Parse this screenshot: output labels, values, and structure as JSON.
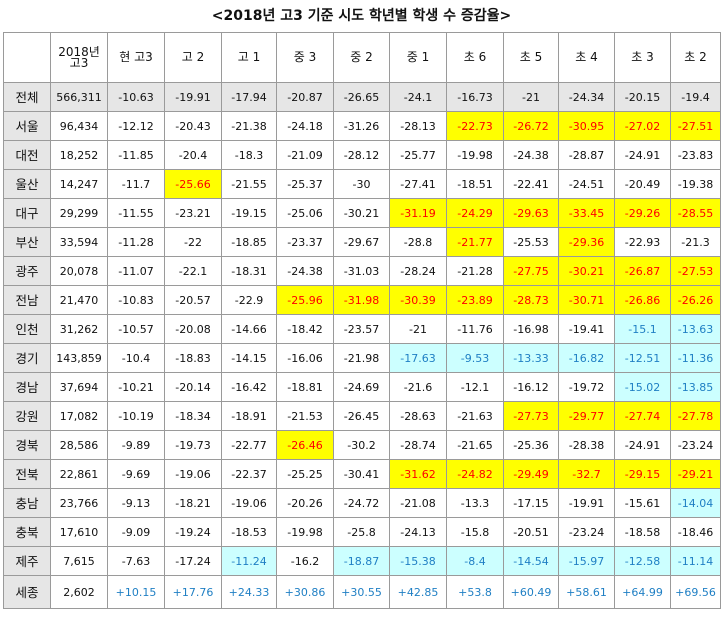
{
  "title": "<2018년 고3 기준 시도 학년별 학생 수 증감율>",
  "columns": [
    "2018년 고3",
    "현 고3",
    "고 2",
    "고 1",
    "중 3",
    "중 2",
    "중 1",
    "초 6",
    "초 5",
    "초 4",
    "초 3",
    "초 2"
  ],
  "colors": {
    "yellow_bg": "#ffff00",
    "yellow_text": "#ff0000",
    "cyan_bg": "#ccffff",
    "cyan_text": "#1f7fc4",
    "header_bg": "#e6e6e6"
  },
  "rows": [
    {
      "region": "전체",
      "cells": [
        {
          "v": "566,311"
        },
        {
          "v": "-10.63"
        },
        {
          "v": "-19.91"
        },
        {
          "v": "-17.94"
        },
        {
          "v": "-20.87"
        },
        {
          "v": "-26.65"
        },
        {
          "v": "-24.1"
        },
        {
          "v": "-16.73"
        },
        {
          "v": "-21"
        },
        {
          "v": "-24.34"
        },
        {
          "v": "-20.15"
        },
        {
          "v": "-19.4"
        }
      ]
    },
    {
      "region": "서울",
      "cells": [
        {
          "v": "96,434"
        },
        {
          "v": "-12.12"
        },
        {
          "v": "-20.43"
        },
        {
          "v": "-21.38"
        },
        {
          "v": "-24.18"
        },
        {
          "v": "-31.26"
        },
        {
          "v": "-28.13"
        },
        {
          "v": "-22.73",
          "h": "yellow"
        },
        {
          "v": "-26.72",
          "h": "yellow"
        },
        {
          "v": "-30.95",
          "h": "yellow"
        },
        {
          "v": "-27.02",
          "h": "yellow"
        },
        {
          "v": "-27.51",
          "h": "yellow"
        }
      ]
    },
    {
      "region": "대전",
      "cells": [
        {
          "v": "18,252"
        },
        {
          "v": "-11.85"
        },
        {
          "v": "-20.4"
        },
        {
          "v": "-18.3"
        },
        {
          "v": "-21.09"
        },
        {
          "v": "-28.12"
        },
        {
          "v": "-25.77"
        },
        {
          "v": "-19.98"
        },
        {
          "v": "-24.38"
        },
        {
          "v": "-28.87"
        },
        {
          "v": "-24.91"
        },
        {
          "v": "-23.83"
        }
      ]
    },
    {
      "region": "울산",
      "cells": [
        {
          "v": "14,247"
        },
        {
          "v": "-11.7"
        },
        {
          "v": "-25.66",
          "h": "yellow"
        },
        {
          "v": "-21.55"
        },
        {
          "v": "-25.37"
        },
        {
          "v": "-30"
        },
        {
          "v": "-27.41"
        },
        {
          "v": "-18.51"
        },
        {
          "v": "-22.41"
        },
        {
          "v": "-24.51"
        },
        {
          "v": "-20.49"
        },
        {
          "v": "-19.38"
        }
      ]
    },
    {
      "region": "대구",
      "cells": [
        {
          "v": "29,299"
        },
        {
          "v": "-11.55"
        },
        {
          "v": "-23.21"
        },
        {
          "v": "-19.15"
        },
        {
          "v": "-25.06"
        },
        {
          "v": "-30.21"
        },
        {
          "v": "-31.19",
          "h": "yellow"
        },
        {
          "v": "-24.29",
          "h": "yellow"
        },
        {
          "v": "-29.63",
          "h": "yellow"
        },
        {
          "v": "-33.45",
          "h": "yellow"
        },
        {
          "v": "-29.26",
          "h": "yellow"
        },
        {
          "v": "-28.55",
          "h": "yellow"
        }
      ]
    },
    {
      "region": "부산",
      "cells": [
        {
          "v": "33,594"
        },
        {
          "v": "-11.28"
        },
        {
          "v": "-22"
        },
        {
          "v": "-18.85"
        },
        {
          "v": "-23.37"
        },
        {
          "v": "-29.67"
        },
        {
          "v": "-28.8"
        },
        {
          "v": "-21.77",
          "h": "yellow"
        },
        {
          "v": "-25.53"
        },
        {
          "v": "-29.36",
          "h": "yellow"
        },
        {
          "v": "-22.93"
        },
        {
          "v": "-21.3"
        }
      ]
    },
    {
      "region": "광주",
      "cells": [
        {
          "v": "20,078"
        },
        {
          "v": "-11.07"
        },
        {
          "v": "-22.1"
        },
        {
          "v": "-18.31"
        },
        {
          "v": "-24.38"
        },
        {
          "v": "-31.03"
        },
        {
          "v": "-28.24"
        },
        {
          "v": "-21.28"
        },
        {
          "v": "-27.75",
          "h": "yellow"
        },
        {
          "v": "-30.21",
          "h": "yellow"
        },
        {
          "v": "-26.87",
          "h": "yellow"
        },
        {
          "v": "-27.53",
          "h": "yellow"
        }
      ]
    },
    {
      "region": "전남",
      "cells": [
        {
          "v": "21,470"
        },
        {
          "v": "-10.83"
        },
        {
          "v": "-20.57"
        },
        {
          "v": "-22.9"
        },
        {
          "v": "-25.96",
          "h": "yellow"
        },
        {
          "v": "-31.98",
          "h": "yellow"
        },
        {
          "v": "-30.39",
          "h": "yellow"
        },
        {
          "v": "-23.89",
          "h": "yellow"
        },
        {
          "v": "-28.73",
          "h": "yellow"
        },
        {
          "v": "-30.71",
          "h": "yellow"
        },
        {
          "v": "-26.86",
          "h": "yellow"
        },
        {
          "v": "-26.26",
          "h": "yellow"
        }
      ]
    },
    {
      "region": "인천",
      "cells": [
        {
          "v": "31,262"
        },
        {
          "v": "-10.57"
        },
        {
          "v": "-20.08"
        },
        {
          "v": "-14.66"
        },
        {
          "v": "-18.42"
        },
        {
          "v": "-23.57"
        },
        {
          "v": "-21"
        },
        {
          "v": "-11.76"
        },
        {
          "v": "-16.98"
        },
        {
          "v": "-19.41"
        },
        {
          "v": "-15.1",
          "h": "cyan"
        },
        {
          "v": "-13.63",
          "h": "cyan"
        }
      ]
    },
    {
      "region": "경기",
      "cells": [
        {
          "v": "143,859"
        },
        {
          "v": "-10.4"
        },
        {
          "v": "-18.83"
        },
        {
          "v": "-14.15"
        },
        {
          "v": "-16.06"
        },
        {
          "v": "-21.98"
        },
        {
          "v": "-17.63",
          "h": "cyan"
        },
        {
          "v": "-9.53",
          "h": "cyan"
        },
        {
          "v": "-13.33",
          "h": "cyan"
        },
        {
          "v": "-16.82",
          "h": "cyan"
        },
        {
          "v": "-12.51",
          "h": "cyan"
        },
        {
          "v": "-11.36",
          "h": "cyan"
        }
      ]
    },
    {
      "region": "경남",
      "cells": [
        {
          "v": "37,694"
        },
        {
          "v": "-10.21"
        },
        {
          "v": "-20.14"
        },
        {
          "v": "-16.42"
        },
        {
          "v": "-18.81"
        },
        {
          "v": "-24.69"
        },
        {
          "v": "-21.6"
        },
        {
          "v": "-12.1"
        },
        {
          "v": "-16.12"
        },
        {
          "v": "-19.72"
        },
        {
          "v": "-15.02",
          "h": "cyan"
        },
        {
          "v": "-13.85",
          "h": "cyan"
        }
      ]
    },
    {
      "region": "강원",
      "cells": [
        {
          "v": "17,082"
        },
        {
          "v": "-10.19"
        },
        {
          "v": "-18.34"
        },
        {
          "v": "-18.91"
        },
        {
          "v": "-21.53"
        },
        {
          "v": "-26.45"
        },
        {
          "v": "-28.63"
        },
        {
          "v": "-21.63"
        },
        {
          "v": "-27.73",
          "h": "yellow"
        },
        {
          "v": "-29.77",
          "h": "yellow"
        },
        {
          "v": "-27.74",
          "h": "yellow"
        },
        {
          "v": "-27.78",
          "h": "yellow"
        }
      ]
    },
    {
      "region": "경북",
      "cells": [
        {
          "v": "28,586"
        },
        {
          "v": "-9.89"
        },
        {
          "v": "-19.73"
        },
        {
          "v": "-22.77"
        },
        {
          "v": "-26.46",
          "h": "yellow"
        },
        {
          "v": "-30.2"
        },
        {
          "v": "-28.74"
        },
        {
          "v": "-21.65"
        },
        {
          "v": "-25.36"
        },
        {
          "v": "-28.38"
        },
        {
          "v": "-24.91"
        },
        {
          "v": "-23.24"
        }
      ]
    },
    {
      "region": "전북",
      "cells": [
        {
          "v": "22,861"
        },
        {
          "v": "-9.69"
        },
        {
          "v": "-19.06"
        },
        {
          "v": "-22.37"
        },
        {
          "v": "-25.25"
        },
        {
          "v": "-30.41"
        },
        {
          "v": "-31.62",
          "h": "yellow"
        },
        {
          "v": "-24.82",
          "h": "yellow"
        },
        {
          "v": "-29.49",
          "h": "yellow"
        },
        {
          "v": "-32.7",
          "h": "yellow"
        },
        {
          "v": "-29.15",
          "h": "yellow"
        },
        {
          "v": "-29.21",
          "h": "yellow"
        }
      ]
    },
    {
      "region": "충남",
      "cells": [
        {
          "v": "23,766"
        },
        {
          "v": "-9.13"
        },
        {
          "v": "-18.21"
        },
        {
          "v": "-19.06"
        },
        {
          "v": "-20.26"
        },
        {
          "v": "-24.72"
        },
        {
          "v": "-21.08"
        },
        {
          "v": "-13.3"
        },
        {
          "v": "-17.15"
        },
        {
          "v": "-19.91"
        },
        {
          "v": "-15.61"
        },
        {
          "v": "-14.04",
          "h": "cyan"
        }
      ]
    },
    {
      "region": "충북",
      "cells": [
        {
          "v": "17,610"
        },
        {
          "v": "-9.09"
        },
        {
          "v": "-19.24"
        },
        {
          "v": "-18.53"
        },
        {
          "v": "-19.98"
        },
        {
          "v": "-25.8"
        },
        {
          "v": "-24.13"
        },
        {
          "v": "-15.8"
        },
        {
          "v": "-20.51"
        },
        {
          "v": "-23.24"
        },
        {
          "v": "-18.58"
        },
        {
          "v": "-18.46"
        }
      ]
    },
    {
      "region": "제주",
      "cells": [
        {
          "v": "7,615"
        },
        {
          "v": "-7.63"
        },
        {
          "v": "-17.24"
        },
        {
          "v": "-11.24",
          "h": "cyan"
        },
        {
          "v": "-16.2"
        },
        {
          "v": "-18.87",
          "h": "cyan"
        },
        {
          "v": "-15.38",
          "h": "cyan"
        },
        {
          "v": "-8.4",
          "h": "cyan"
        },
        {
          "v": "-14.54",
          "h": "cyan"
        },
        {
          "v": "-15.97",
          "h": "cyan"
        },
        {
          "v": "-12.58",
          "h": "cyan"
        },
        {
          "v": "-11.14",
          "h": "cyan"
        }
      ]
    },
    {
      "region": "세종",
      "cells": [
        {
          "v": "2,602"
        },
        {
          "v": "+10.15",
          "h": "pos"
        },
        {
          "v": "+17.76",
          "h": "pos"
        },
        {
          "v": "+24.33",
          "h": "pos"
        },
        {
          "v": "+30.86",
          "h": "pos"
        },
        {
          "v": "+30.55",
          "h": "pos"
        },
        {
          "v": "+42.85",
          "h": "pos"
        },
        {
          "v": "+53.8",
          "h": "pos"
        },
        {
          "v": "+60.49",
          "h": "pos"
        },
        {
          "v": "+58.61",
          "h": "pos"
        },
        {
          "v": "+64.99",
          "h": "pos"
        },
        {
          "v": "+69.56",
          "h": "pos"
        }
      ]
    }
  ]
}
